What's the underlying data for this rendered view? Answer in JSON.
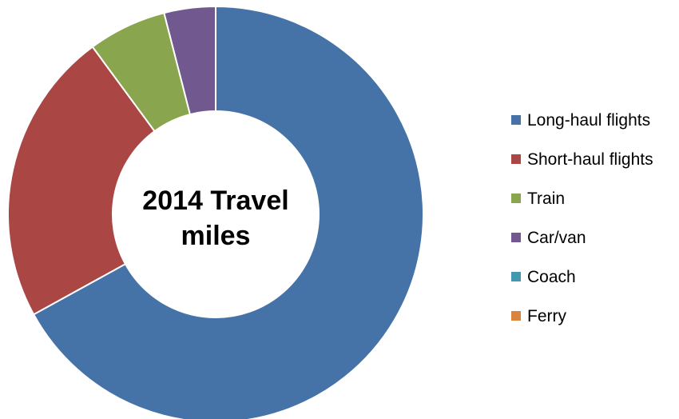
{
  "chart_data": {
    "type": "pie",
    "style": "doughnut",
    "title_lines": [
      "2014 Travel",
      "miles"
    ],
    "categories": [
      "Long-haul flights",
      "Short-haul flights",
      "Train",
      "Car/van",
      "Coach",
      "Ferry"
    ],
    "values": [
      67.0,
      22.9,
      6.1,
      4.0,
      0.0,
      0.0
    ],
    "colors": [
      "#4572A7",
      "#AA4643",
      "#89A54E",
      "#71588F",
      "#4198AF",
      "#DB843D"
    ],
    "legend_position": "right"
  }
}
